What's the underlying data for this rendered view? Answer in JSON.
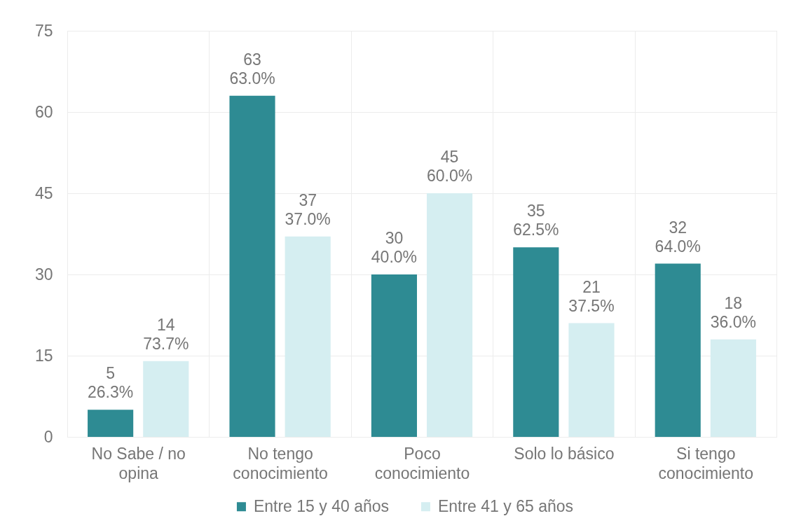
{
  "chart_data": {
    "type": "bar",
    "categories": [
      "No Sabe / no opina",
      "No tengo conocimiento",
      "Poco conocimiento",
      "Solo lo básico",
      "Si tengo conocimiento"
    ],
    "series": [
      {
        "name": "Entre 15 y 40 años",
        "color": "#2e8b93",
        "values": [
          5,
          63,
          30,
          35,
          32
        ],
        "value_labels": [
          "5\n26.3%",
          "63\n63.0%",
          "30\n40.0%",
          "35\n62.5%",
          "32\n64.0%"
        ]
      },
      {
        "name": "Entre 41 y 65 años",
        "color": "#d5eef1",
        "values": [
          14,
          37,
          45,
          21,
          18
        ],
        "value_labels": [
          "14\n73.7%",
          "37\n37.0%",
          "45\n60.0%",
          "21\n37.5%",
          "18\n36.0%"
        ]
      }
    ],
    "ylim": [
      0,
      75
    ],
    "yticks": [
      0,
      15,
      30,
      45,
      60,
      75
    ],
    "grid": true,
    "legend": "bottom"
  }
}
